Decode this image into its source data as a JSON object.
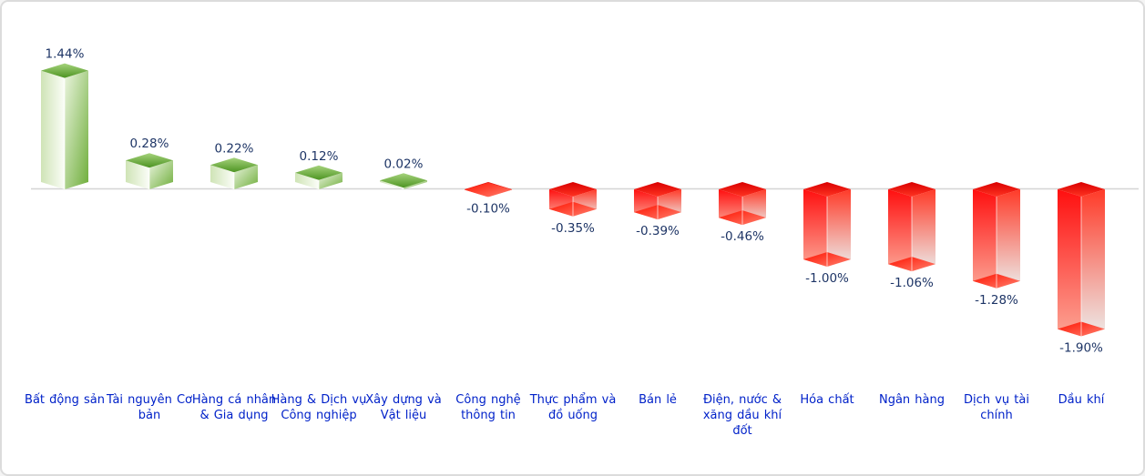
{
  "card": {
    "background": "#ffffff",
    "border_color": "#dcdcdc"
  },
  "chart_data": {
    "type": "bar",
    "title": "",
    "subtitle": "",
    "xlabel": "",
    "ylabel": "",
    "unit": "%",
    "bar_style": "3d-box",
    "grid": false,
    "legend": false,
    "baseline": 0,
    "ylim": [
      -2.0,
      1.6
    ],
    "categories": [
      "Bất động sản",
      "Tài nguyên Cơ bản",
      "Hàng cá nhân & Gia dụng",
      "Hàng & Dịch vụ Công nghiệp",
      "Xây dựng và Vật liệu",
      "Công nghệ thông tin",
      "Thực phẩm và đồ uống",
      "Bán lẻ",
      "Điện, nước & xăng dầu khí đốt",
      "Hóa chất",
      "Ngân hàng",
      "Dịch vụ tài chính",
      "Dầu khí"
    ],
    "values": [
      1.44,
      0.28,
      0.22,
      0.12,
      0.02,
      -0.1,
      -0.35,
      -0.39,
      -0.46,
      -1.0,
      -1.06,
      -1.28,
      -1.9
    ],
    "value_labels": [
      "1.44%",
      "0.28%",
      "0.22%",
      "0.12%",
      "0.02%",
      "-0.10%",
      "-0.35%",
      "-0.39%",
      "-0.46%",
      "-1.00%",
      "-1.06%",
      "-1.28%",
      "-1.90%"
    ],
    "colors": {
      "positive_main": "#76b143",
      "positive_top": "#4d9422",
      "positive_light": "#eaf4de",
      "negative_main": "#ff1507",
      "negative_fade": "#ecebe9",
      "value_label": "#1e3566",
      "category_label": "#0021c9",
      "axis_line": "#d5d5d5"
    }
  }
}
